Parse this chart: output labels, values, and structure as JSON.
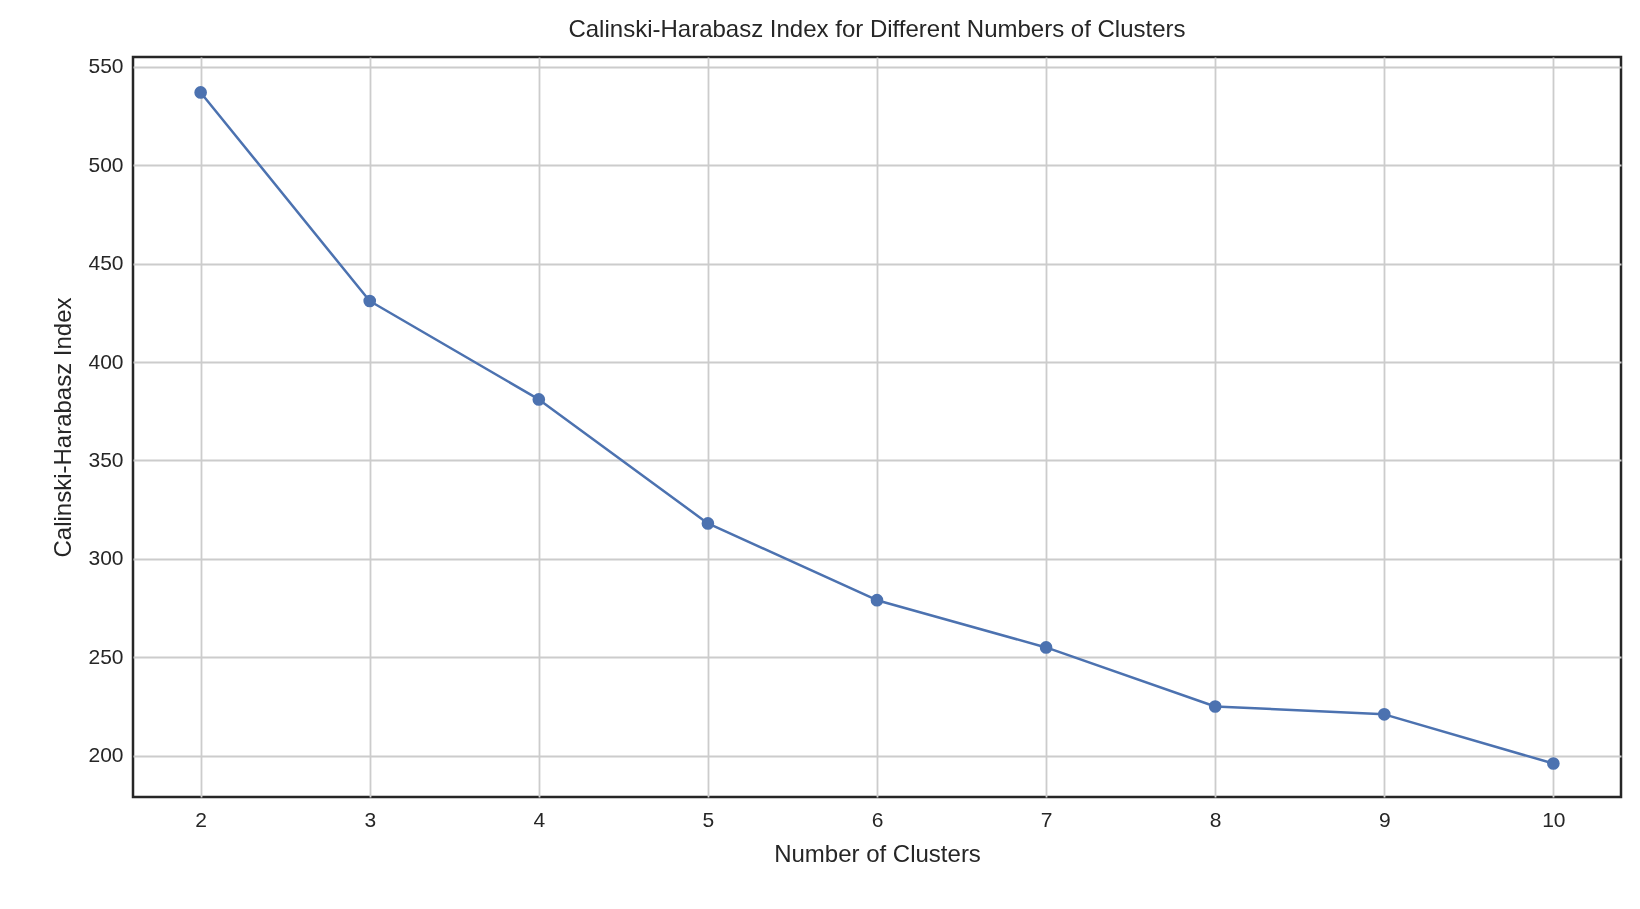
{
  "chart_data": {
    "type": "line",
    "title": "Calinski-Harabasz Index for Different Numbers of Clusters",
    "xlabel": "Number of Clusters",
    "ylabel": "Calinski-Harabasz Index",
    "x": [
      2,
      3,
      4,
      5,
      6,
      7,
      8,
      9,
      10
    ],
    "series": [
      {
        "color": "#4c72b0",
        "values": [
          537,
          431,
          381,
          318,
          279,
          255,
          225,
          221,
          196
        ]
      }
    ],
    "xlim": [
      1.6,
      10.4
    ],
    "xticks": [
      2,
      3,
      4,
      5,
      6,
      7,
      8,
      9,
      10
    ],
    "ylim": [
      179,
      555
    ],
    "yticks": [
      200,
      250,
      300,
      350,
      400,
      450,
      500,
      550
    ],
    "grid": true,
    "marker": "circle",
    "line_style": "solid"
  }
}
